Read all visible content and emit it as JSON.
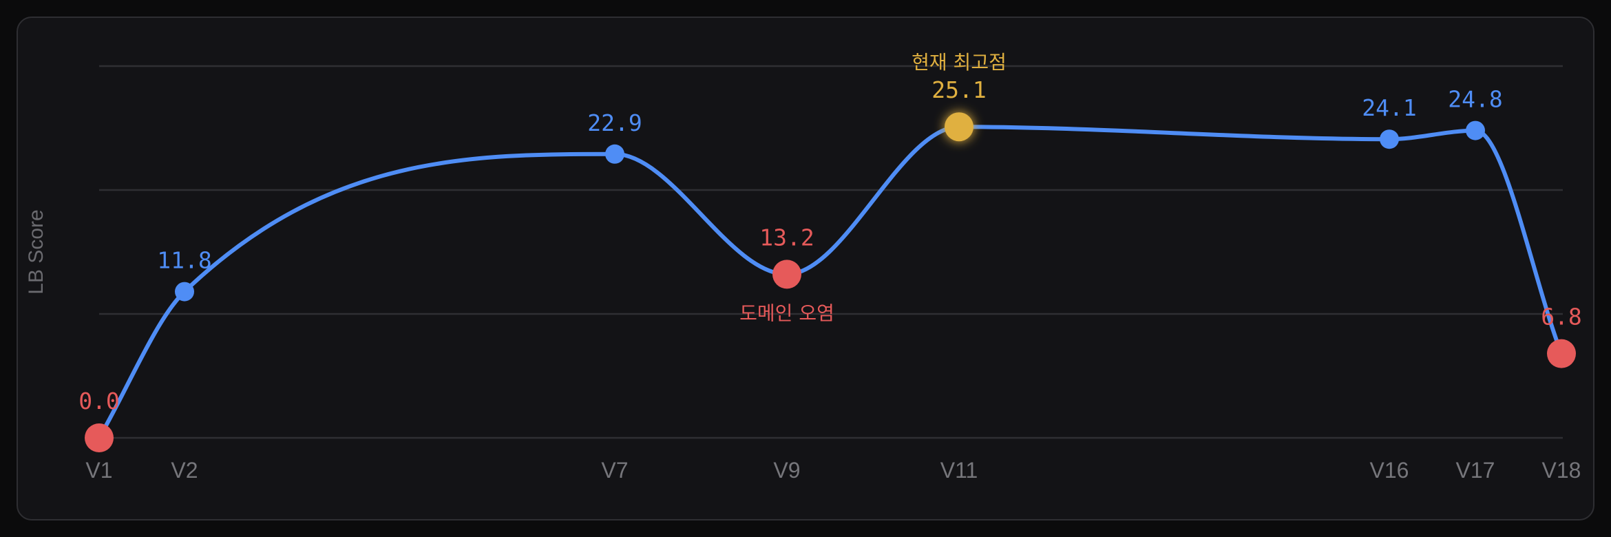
{
  "chart_data": {
    "type": "line",
    "title": "",
    "xlabel": "",
    "ylabel": "LB Score",
    "x": [
      "V1",
      "V2",
      "V7",
      "V9",
      "V11",
      "V16",
      "V17",
      "V18"
    ],
    "series": [
      {
        "values": [
          0.0,
          11.8,
          22.9,
          13.2,
          25.1,
          24.1,
          24.8,
          6.8
        ],
        "value_labels": [
          "0.0",
          "11.8",
          "22.9",
          "13.2",
          "25.1",
          "24.1",
          "24.8",
          "6.8"
        ],
        "point_kinds": [
          "drop",
          "normal",
          "normal",
          "drop",
          "best",
          "normal",
          "normal",
          "drop"
        ]
      }
    ],
    "annotations": [
      {
        "x": "V9",
        "text": "도메인 오염",
        "kind": "drop"
      },
      {
        "x": "V11",
        "text": "현재 최고점",
        "kind": "best"
      }
    ],
    "ylim": [
      0,
      30
    ],
    "grid": true,
    "colors": {
      "line": "#4f8df5",
      "drop": "#e65a5a",
      "best": "#e0b040",
      "grid": "#2f2f33"
    }
  }
}
